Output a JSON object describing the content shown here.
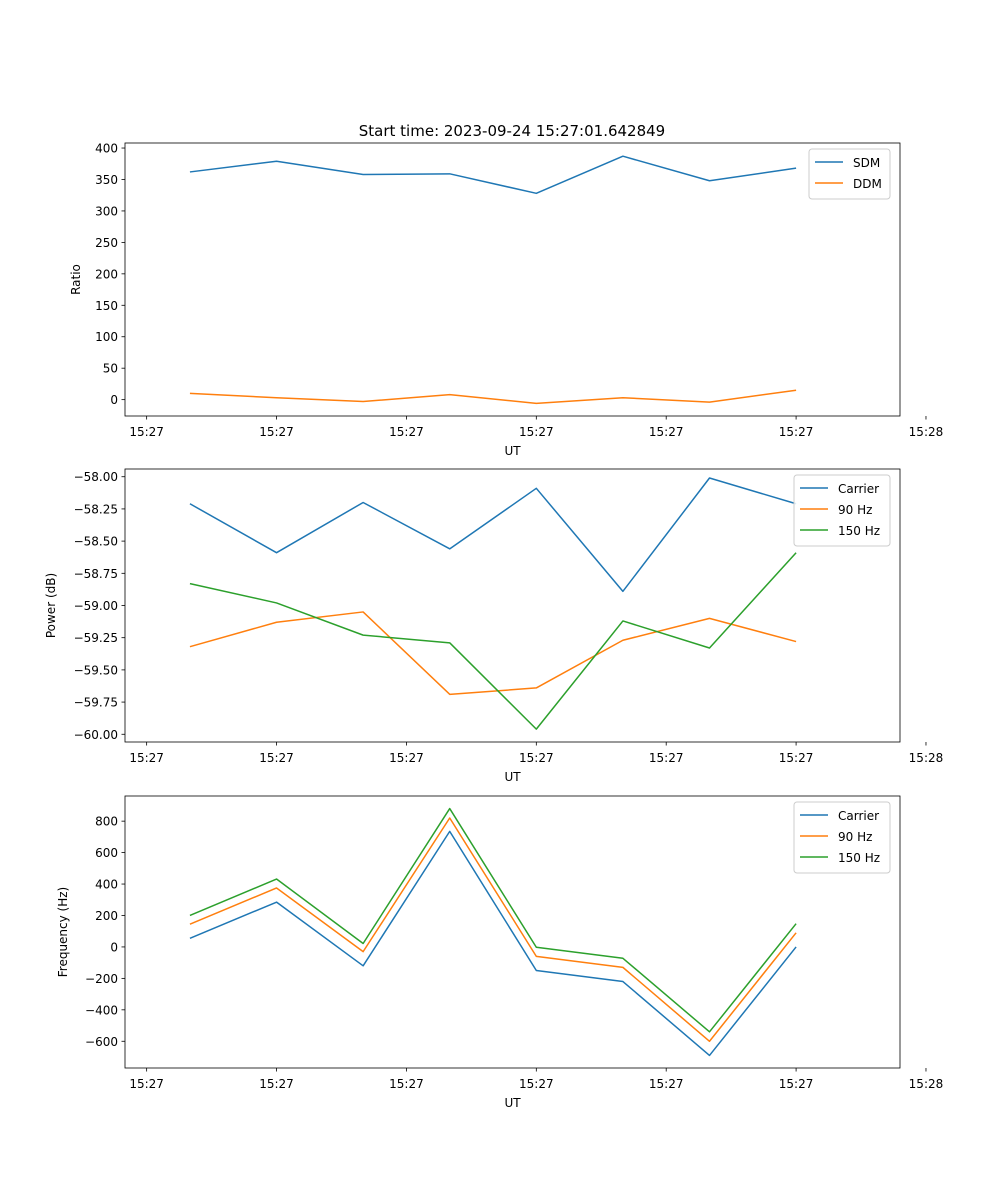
{
  "title": "Start time: 2023-09-24 15:27:01.642849",
  "colors": {
    "blue": "#1f77b4",
    "orange": "#ff7f0e",
    "green": "#2ca02c"
  },
  "chart_data": [
    {
      "type": "line",
      "xlabel": "UT",
      "ylabel": "Ratio",
      "x_tick_labels": [
        "15:27",
        "15:27",
        "15:27",
        "15:27",
        "15:27",
        "15:27",
        "15:28"
      ],
      "x": [
        1,
        2,
        3,
        4,
        5,
        6,
        7,
        8
      ],
      "xlim": [
        0.25,
        9.2
      ],
      "ylim": [
        -26,
        408
      ],
      "y_ticks": [
        0,
        50,
        100,
        150,
        200,
        250,
        300,
        350,
        400
      ],
      "legend": "top-right",
      "series": [
        {
          "name": "SDM",
          "color": "#1f77b4",
          "values": [
            362,
            379,
            358,
            359,
            328,
            387,
            348,
            368
          ]
        },
        {
          "name": "DDM",
          "color": "#ff7f0e",
          "values": [
            10,
            3,
            -3,
            8,
            -6,
            3,
            -4,
            15
          ]
        }
      ]
    },
    {
      "type": "line",
      "xlabel": "UT",
      "ylabel": "Power (dB)",
      "x_tick_labels": [
        "15:27",
        "15:27",
        "15:27",
        "15:27",
        "15:27",
        "15:27",
        "15:28"
      ],
      "x": [
        1,
        2,
        3,
        4,
        5,
        6,
        7,
        8
      ],
      "xlim": [
        0.25,
        9.2
      ],
      "ylim": [
        -60.06,
        -57.94
      ],
      "y_ticks": [
        -60.0,
        -59.75,
        -59.5,
        -59.25,
        -59.0,
        -58.75,
        -58.5,
        -58.25,
        -58.0
      ],
      "y_tick_labels": [
        "−60.00",
        "−59.75",
        "−59.50",
        "−59.25",
        "−59.00",
        "−58.75",
        "−58.50",
        "−58.25",
        "−58.00"
      ],
      "legend": "top-right",
      "series": [
        {
          "name": "Carrier",
          "color": "#1f77b4",
          "values": [
            -58.21,
            -58.59,
            -58.2,
            -58.56,
            -58.09,
            -58.89,
            -58.01,
            -58.21
          ]
        },
        {
          "name": "90 Hz",
          "color": "#ff7f0e",
          "values": [
            -59.32,
            -59.13,
            -59.05,
            -59.69,
            -59.64,
            -59.27,
            -59.1,
            -59.28
          ]
        },
        {
          "name": "150 Hz",
          "color": "#2ca02c",
          "values": [
            -58.83,
            -58.98,
            -59.23,
            -59.29,
            -59.96,
            -59.12,
            -59.33,
            -58.59
          ]
        }
      ]
    },
    {
      "type": "line",
      "xlabel": "UT",
      "ylabel": "Frequency (Hz)",
      "x_tick_labels": [
        "15:27",
        "15:27",
        "15:27",
        "15:27",
        "15:27",
        "15:27",
        "15:28"
      ],
      "x": [
        1,
        2,
        3,
        4,
        5,
        6,
        7,
        8
      ],
      "xlim": [
        0.25,
        9.2
      ],
      "ylim": [
        -770,
        960
      ],
      "y_ticks": [
        -600,
        -400,
        -200,
        0,
        200,
        400,
        600,
        800
      ],
      "y_tick_labels": [
        "−600",
        "−400",
        "−200",
        "0",
        "200",
        "400",
        "600",
        "800"
      ],
      "legend": "top-right",
      "series": [
        {
          "name": "Carrier",
          "color": "#1f77b4",
          "values": [
            55,
            285,
            -120,
            735,
            -150,
            -220,
            -690,
            0
          ]
        },
        {
          "name": "90 Hz",
          "color": "#ff7f0e",
          "values": [
            145,
            375,
            -30,
            820,
            -60,
            -130,
            -600,
            90
          ]
        },
        {
          "name": "150 Hz",
          "color": "#2ca02c",
          "values": [
            200,
            432,
            22,
            880,
            -2,
            -72,
            -540,
            148
          ]
        }
      ]
    }
  ]
}
